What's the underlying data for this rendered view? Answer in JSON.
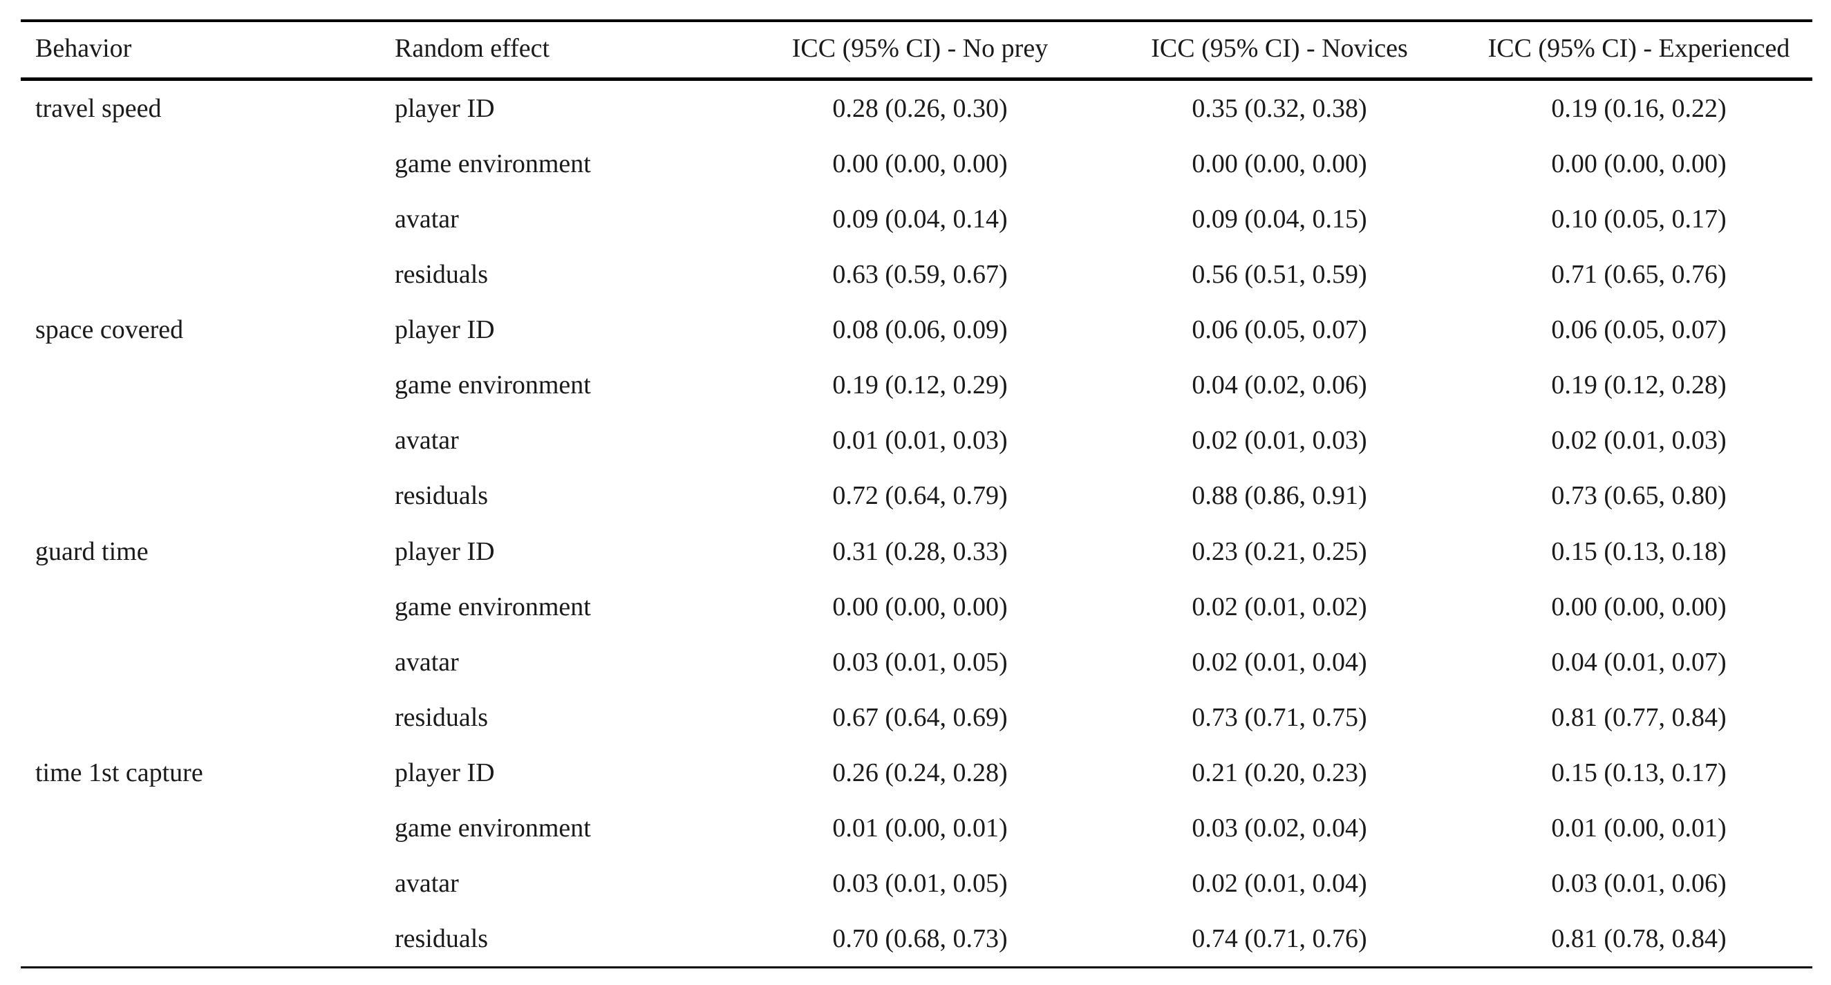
{
  "table": {
    "headers": {
      "behavior": "Behavior",
      "random_effect": "Random effect",
      "no_prey": "ICC (95% CI) - No prey",
      "novices": "ICC (95% CI) - Novices",
      "experienced": "ICC (95% CI) - Experienced"
    },
    "rows": [
      {
        "behavior": "travel speed",
        "effect": "player ID",
        "no_prey": "0.28 (0.26, 0.30)",
        "novices": "0.35 (0.32, 0.38)",
        "experienced": "0.19 (0.16, 0.22)"
      },
      {
        "behavior": "",
        "effect": "game environment",
        "no_prey": "0.00 (0.00, 0.00)",
        "novices": "0.00 (0.00, 0.00)",
        "experienced": "0.00 (0.00, 0.00)"
      },
      {
        "behavior": "",
        "effect": "avatar",
        "no_prey": "0.09 (0.04, 0.14)",
        "novices": "0.09 (0.04, 0.15)",
        "experienced": "0.10 (0.05, 0.17)"
      },
      {
        "behavior": "",
        "effect": "residuals",
        "no_prey": "0.63 (0.59, 0.67)",
        "novices": "0.56 (0.51, 0.59)",
        "experienced": "0.71 (0.65, 0.76)"
      },
      {
        "behavior": "space covered",
        "effect": "player ID",
        "no_prey": "0.08 (0.06, 0.09)",
        "novices": "0.06 (0.05, 0.07)",
        "experienced": "0.06 (0.05, 0.07)"
      },
      {
        "behavior": "",
        "effect": "game environment",
        "no_prey": "0.19 (0.12, 0.29)",
        "novices": "0.04 (0.02, 0.06)",
        "experienced": "0.19 (0.12, 0.28)"
      },
      {
        "behavior": "",
        "effect": "avatar",
        "no_prey": "0.01 (0.01, 0.03)",
        "novices": "0.02 (0.01, 0.03)",
        "experienced": "0.02 (0.01, 0.03)"
      },
      {
        "behavior": "",
        "effect": "residuals",
        "no_prey": "0.72 (0.64, 0.79)",
        "novices": "0.88 (0.86, 0.91)",
        "experienced": "0.73 (0.65, 0.80)"
      },
      {
        "behavior": "guard time",
        "effect": "player ID",
        "no_prey": "0.31 (0.28, 0.33)",
        "novices": "0.23 (0.21, 0.25)",
        "experienced": "0.15 (0.13, 0.18)"
      },
      {
        "behavior": "",
        "effect": "game environment",
        "no_prey": "0.00 (0.00, 0.00)",
        "novices": "0.02 (0.01, 0.02)",
        "experienced": "0.00 (0.00, 0.00)"
      },
      {
        "behavior": "",
        "effect": "avatar",
        "no_prey": "0.03 (0.01, 0.05)",
        "novices": "0.02 (0.01, 0.04)",
        "experienced": "0.04 (0.01, 0.07)"
      },
      {
        "behavior": "",
        "effect": "residuals",
        "no_prey": "0.67 (0.64, 0.69)",
        "novices": "0.73 (0.71, 0.75)",
        "experienced": "0.81 (0.77, 0.84)"
      },
      {
        "behavior": "time 1st capture",
        "effect": "player ID",
        "no_prey": "0.26 (0.24, 0.28)",
        "novices": "0.21 (0.20, 0.23)",
        "experienced": "0.15 (0.13, 0.17)"
      },
      {
        "behavior": "",
        "effect": "game environment",
        "no_prey": "0.01 (0.00, 0.01)",
        "novices": "0.03 (0.02, 0.04)",
        "experienced": "0.01 (0.00, 0.01)"
      },
      {
        "behavior": "",
        "effect": "avatar",
        "no_prey": "0.03 (0.01, 0.05)",
        "novices": "0.02 (0.01, 0.04)",
        "experienced": "0.03 (0.01, 0.06)"
      },
      {
        "behavior": "",
        "effect": "residuals",
        "no_prey": "0.70 (0.68, 0.73)",
        "novices": "0.74 (0.71, 0.76)",
        "experienced": "0.81 (0.78, 0.84)"
      }
    ]
  }
}
